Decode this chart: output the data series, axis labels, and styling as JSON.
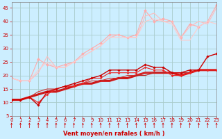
{
  "background_color": "#cceeff",
  "grid_color": "#aacccc",
  "xlabel": "Vent moyen/en rafales ( km/h )",
  "xlabel_color": "#cc0000",
  "xlabel_fontsize": 6,
  "ylabel_ticks": [
    5,
    10,
    15,
    20,
    25,
    30,
    35,
    40,
    45
  ],
  "xticks": [
    0,
    1,
    2,
    3,
    4,
    5,
    6,
    7,
    8,
    9,
    10,
    11,
    12,
    13,
    14,
    15,
    16,
    17,
    18,
    19,
    20,
    21,
    22,
    23
  ],
  "xlim": [
    0,
    23
  ],
  "ylim": [
    5,
    47
  ],
  "series": [
    {
      "x": [
        0,
        1,
        2,
        3,
        4,
        5,
        6,
        7,
        8,
        9,
        10,
        11,
        12,
        13,
        14,
        15,
        16,
        17,
        18,
        19,
        20,
        21,
        22,
        23
      ],
      "y": [
        19,
        18,
        18,
        26,
        24,
        23,
        24,
        25,
        28,
        30,
        32,
        35,
        35,
        34,
        35,
        44,
        40,
        41,
        40,
        34,
        39,
        38,
        40,
        46
      ],
      "color": "#ffaaaa",
      "linewidth": 0.8,
      "marker": "D",
      "markersize": 2.0,
      "zorder": 2
    },
    {
      "x": [
        0,
        1,
        2,
        3,
        4,
        5,
        6,
        7,
        8,
        9,
        10,
        11,
        12,
        13,
        14,
        15,
        16,
        17,
        18,
        19,
        20,
        21,
        22,
        23
      ],
      "y": [
        19,
        18,
        18,
        21,
        27,
        23,
        23,
        25,
        27,
        29,
        31,
        34,
        35,
        34,
        34,
        42,
        43,
        40,
        40,
        34,
        38,
        40,
        39,
        45
      ],
      "color": "#ffbbbb",
      "linewidth": 0.8,
      "marker": null,
      "markersize": 0,
      "zorder": 2
    },
    {
      "x": [
        0,
        1,
        2,
        3,
        4,
        5,
        6,
        7,
        8,
        9,
        10,
        11,
        12,
        13,
        14,
        15,
        16,
        17,
        18,
        19,
        20,
        21,
        22,
        23
      ],
      "y": [
        19,
        18,
        18,
        22,
        25,
        23,
        23,
        25,
        27,
        29,
        31,
        34,
        34,
        34,
        34,
        40,
        41,
        40,
        39,
        33,
        33,
        38,
        40,
        39
      ],
      "color": "#ffcccc",
      "linewidth": 0.8,
      "marker": null,
      "markersize": 0,
      "zorder": 2
    },
    {
      "x": [
        0,
        1,
        2,
        3,
        4,
        5,
        6,
        7,
        8,
        9,
        10,
        11,
        12,
        13,
        14,
        15,
        16,
        17,
        18,
        19,
        20,
        21,
        22,
        23
      ],
      "y": [
        11,
        11,
        12,
        9,
        14,
        15,
        16,
        17,
        18,
        19,
        20,
        22,
        22,
        22,
        22,
        24,
        23,
        23,
        21,
        21,
        22,
        22,
        27,
        28
      ],
      "color": "#cc0000",
      "linewidth": 1.0,
      "marker": "D",
      "markersize": 1.8,
      "zorder": 4
    },
    {
      "x": [
        0,
        1,
        2,
        3,
        4,
        5,
        6,
        7,
        8,
        9,
        10,
        11,
        12,
        13,
        14,
        15,
        16,
        17,
        18,
        19,
        20,
        21,
        22,
        23
      ],
      "y": [
        11,
        11,
        12,
        10,
        13,
        15,
        16,
        16,
        17,
        19,
        19,
        21,
        21,
        21,
        21,
        23,
        22,
        22,
        20,
        20,
        21,
        22,
        22,
        22
      ],
      "color": "#ee2222",
      "linewidth": 0.8,
      "marker": "D",
      "markersize": 1.5,
      "zorder": 3
    },
    {
      "x": [
        0,
        1,
        2,
        3,
        4,
        5,
        6,
        7,
        8,
        9,
        10,
        11,
        12,
        13,
        14,
        15,
        16,
        17,
        18,
        19,
        20,
        21,
        22,
        23
      ],
      "y": [
        11,
        11,
        12,
        13,
        14,
        14,
        15,
        16,
        17,
        17,
        18,
        18,
        19,
        19,
        20,
        21,
        21,
        21,
        21,
        20,
        21,
        22,
        22,
        22
      ],
      "color": "#dd1111",
      "linewidth": 2.2,
      "marker": null,
      "markersize": 0,
      "zorder": 2
    },
    {
      "x": [
        0,
        1,
        2,
        3,
        4,
        5,
        6,
        7,
        8,
        9,
        10,
        11,
        12,
        13,
        14,
        15,
        16,
        17,
        18,
        19,
        20,
        21,
        22,
        23
      ],
      "y": [
        11,
        11,
        12,
        14,
        15,
        15,
        16,
        16,
        17,
        18,
        18,
        19,
        19,
        20,
        20,
        21,
        21,
        21,
        21,
        21,
        21,
        22,
        22,
        22
      ],
      "color": "#cc3333",
      "linewidth": 0.8,
      "marker": null,
      "markersize": 0,
      "zorder": 2
    },
    {
      "x": [
        0,
        1,
        2,
        3,
        4,
        5,
        6,
        7,
        8,
        9,
        10,
        11,
        12,
        13,
        14,
        15,
        16,
        17,
        18,
        19,
        20,
        21,
        22,
        23
      ],
      "y": [
        11,
        11,
        12,
        13,
        14,
        14,
        15,
        16,
        17,
        17,
        18,
        18,
        19,
        19,
        20,
        20,
        21,
        21,
        21,
        21,
        21,
        22,
        22,
        22
      ],
      "color": "#bb2222",
      "linewidth": 0.8,
      "marker": null,
      "markersize": 0,
      "zorder": 2
    }
  ],
  "tick_color": "#cc0000",
  "tick_fontsize": 5,
  "spine_color": "#888888"
}
